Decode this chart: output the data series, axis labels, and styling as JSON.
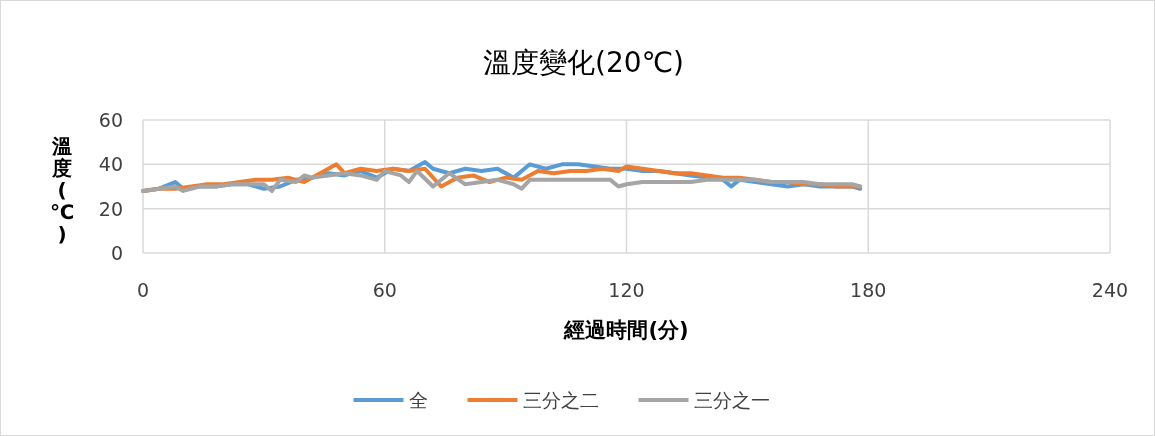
{
  "chart_data": {
    "type": "line",
    "title": "溫度變化(20℃)",
    "xlabel": "經過時間(分)",
    "ylabel": "溫度(℃)",
    "xlim": [
      0,
      240
    ],
    "xticks": [
      0,
      60,
      120,
      180,
      240
    ],
    "ylim": [
      0,
      60
    ],
    "yticks": [
      0,
      20,
      40,
      60
    ],
    "grid": true,
    "legend": "bottom",
    "marker": "none",
    "line_style": "solid",
    "series": [
      {
        "name": "全",
        "color": "#5b9bd5",
        "x": [
          0,
          4,
          8,
          10,
          14,
          18,
          22,
          26,
          30,
          34,
          38,
          42,
          46,
          50,
          54,
          58,
          62,
          66,
          70,
          72,
          76,
          80,
          84,
          88,
          92,
          96,
          100,
          104,
          108,
          112,
          116,
          120,
          124,
          128,
          132,
          136,
          140,
          144,
          146,
          148,
          152,
          156,
          160,
          164,
          168,
          172,
          176,
          178
        ],
        "values": [
          28,
          29,
          32,
          29,
          30,
          30,
          31,
          31,
          29,
          30,
          33,
          34,
          36,
          35,
          37,
          34,
          38,
          37,
          41,
          38,
          36,
          38,
          37,
          38,
          34,
          40,
          38,
          40,
          40,
          39,
          38,
          38,
          37,
          37,
          36,
          35,
          34,
          33,
          30,
          33,
          32,
          31,
          30,
          31,
          30,
          30,
          30,
          29
        ]
      },
      {
        "name": "三分之二",
        "color": "#ed7d31",
        "x": [
          0,
          4,
          8,
          12,
          16,
          20,
          24,
          28,
          32,
          36,
          40,
          44,
          46,
          48,
          50,
          54,
          58,
          62,
          66,
          70,
          74,
          78,
          82,
          86,
          90,
          94,
          98,
          102,
          106,
          110,
          114,
          118,
          120,
          124,
          128,
          132,
          136,
          140,
          144,
          148,
          152,
          156,
          160,
          164,
          168,
          172,
          176,
          178
        ],
        "values": [
          28,
          29,
          29,
          30,
          31,
          31,
          32,
          33,
          33,
          34,
          32,
          36,
          38,
          40,
          36,
          38,
          37,
          38,
          37,
          38,
          30,
          34,
          35,
          32,
          34,
          33,
          37,
          36,
          37,
          37,
          38,
          37,
          39,
          38,
          37,
          36,
          36,
          35,
          34,
          34,
          33,
          32,
          32,
          31,
          31,
          30,
          30,
          30
        ]
      },
      {
        "name": "三分之一",
        "color": "#a5a5a5",
        "x": [
          0,
          4,
          8,
          10,
          14,
          18,
          22,
          26,
          30,
          32,
          34,
          38,
          40,
          42,
          46,
          50,
          54,
          58,
          60,
          64,
          66,
          68,
          72,
          76,
          80,
          84,
          88,
          92,
          94,
          96,
          100,
          104,
          108,
          112,
          116,
          118,
          120,
          124,
          128,
          132,
          136,
          140,
          144,
          148,
          152,
          156,
          160,
          164,
          168,
          172,
          176,
          178
        ],
        "values": [
          28,
          29,
          30,
          28,
          30,
          30,
          31,
          31,
          31,
          28,
          33,
          32,
          35,
          34,
          35,
          36,
          35,
          33,
          37,
          35,
          32,
          37,
          30,
          36,
          31,
          32,
          33,
          31,
          29,
          33,
          33,
          33,
          33,
          33,
          33,
          30,
          31,
          32,
          32,
          32,
          32,
          33,
          33,
          33,
          33,
          32,
          32,
          32,
          31,
          31,
          31,
          30
        ]
      }
    ]
  }
}
